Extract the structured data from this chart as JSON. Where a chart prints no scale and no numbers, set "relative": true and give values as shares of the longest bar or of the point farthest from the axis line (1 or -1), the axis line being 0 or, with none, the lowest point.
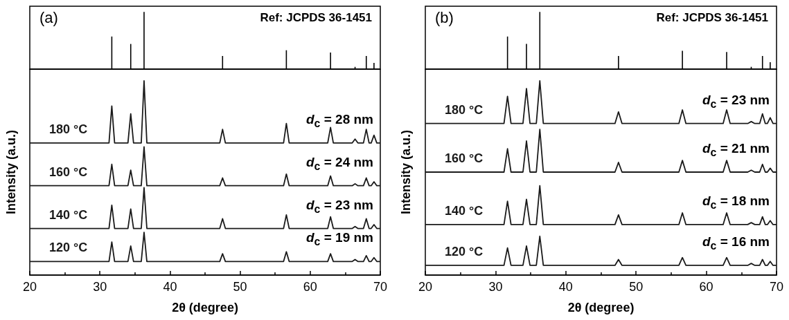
{
  "chart_data": [
    {
      "type": "bar",
      "relative": true,
      "color": "#000000",
      "x": [
        31.7,
        34.4,
        36.3,
        47.5,
        56.6,
        62.9,
        66.4,
        68.0,
        69.1
      ],
      "values": [
        0.57,
        0.44,
        1,
        0.23,
        0.33,
        0.29,
        0.04,
        0.23,
        0.11
      ],
      "xlim": [
        20,
        70
      ],
      "tick_labels": false,
      "annotations": [
        "(a)",
        "Ref: JCPDS 36-1451"
      ]
    },
    {
      "type": "line",
      "relative": true,
      "marker": "none",
      "xlabel": "2θ (degree)",
      "ylabel": "Intensity (a.u.)",
      "xlim": [
        20,
        70
      ],
      "xticks": [
        20,
        30,
        40,
        50,
        60,
        70
      ],
      "tick_labels": "x",
      "x": [
        20,
        31.3,
        31.7,
        32.1,
        34.0,
        34.4,
        34.8,
        35.9,
        36.3,
        36.7,
        47.1,
        47.5,
        47.9,
        56.2,
        56.6,
        57.0,
        62.5,
        62.9,
        63.3,
        66.0,
        66.4,
        66.8,
        67.6,
        68.0,
        68.4,
        68.7,
        69.1,
        69.5,
        70
      ],
      "series": [
        {
          "name": "180 °C",
          "color": "#1a1a1a",
          "values": [
            0.68,
            0.68,
            0.87,
            0.68,
            0.68,
            0.83,
            0.68,
            0.68,
            1,
            0.68,
            0.68,
            0.75,
            0.68,
            0.68,
            0.78,
            0.68,
            0.68,
            0.76,
            0.68,
            0.68,
            0.7,
            0.68,
            0.68,
            0.75,
            0.68,
            0.68,
            0.72,
            0.68,
            0.68
          ]
        },
        {
          "name": "160 °C",
          "color": "#1a1a1a",
          "values": [
            0.46,
            0.46,
            0.57,
            0.46,
            0.46,
            0.54,
            0.46,
            0.46,
            0.66,
            0.46,
            0.46,
            0.5,
            0.46,
            0.46,
            0.52,
            0.46,
            0.46,
            0.51,
            0.46,
            0.46,
            0.47,
            0.46,
            0.46,
            0.5,
            0.46,
            0.46,
            0.48,
            0.46,
            0.46
          ]
        },
        {
          "name": "140 °C",
          "color": "#1a1a1a",
          "values": [
            0.24,
            0.24,
            0.36,
            0.24,
            0.24,
            0.34,
            0.24,
            0.24,
            0.45,
            0.24,
            0.24,
            0.29,
            0.24,
            0.24,
            0.31,
            0.24,
            0.24,
            0.3,
            0.24,
            0.24,
            0.25,
            0.24,
            0.24,
            0.29,
            0.24,
            0.24,
            0.26,
            0.24,
            0.24
          ]
        },
        {
          "name": "120 °C",
          "color": "#1a1a1a",
          "values": [
            0.07,
            0.07,
            0.17,
            0.07,
            0.07,
            0.15,
            0.07,
            0.07,
            0.22,
            0.07,
            0.07,
            0.11,
            0.07,
            0.07,
            0.12,
            0.07,
            0.07,
            0.11,
            0.07,
            0.07,
            0.08,
            0.07,
            0.07,
            0.1,
            0.07,
            0.07,
            0.09,
            0.07,
            0.07
          ]
        }
      ],
      "annotations": [
        "d$_{c}$ = 28 nm",
        "d$_{c}$ = 24 nm",
        "d$_{c}$ = 23 nm",
        "d$_{c}$ = 19 nm"
      ]
    },
    {
      "type": "bar",
      "relative": true,
      "color": "#000000",
      "x": [
        31.7,
        34.4,
        36.3,
        47.5,
        56.6,
        62.9,
        66.4,
        68.0,
        69.1
      ],
      "values": [
        0.57,
        0.44,
        1,
        0.23,
        0.32,
        0.3,
        0.04,
        0.23,
        0.12
      ],
      "xlim": [
        20,
        70
      ],
      "tick_labels": false,
      "annotations": [
        "(b)",
        "Ref: JCPDS 36-1451"
      ]
    },
    {
      "type": "line",
      "relative": true,
      "marker": "none",
      "xlabel": "2θ (degree)",
      "ylabel": "Intensity (a.u.)",
      "xlim": [
        20,
        70
      ],
      "xticks": [
        20,
        30,
        40,
        50,
        60,
        70
      ],
      "tick_labels": "x",
      "x": [
        20,
        31.2,
        31.7,
        32.2,
        33.9,
        34.4,
        34.9,
        35.8,
        36.3,
        36.8,
        47.0,
        47.5,
        48.0,
        56.1,
        56.6,
        57.1,
        62.4,
        62.9,
        63.4,
        65.9,
        66.4,
        66.9,
        67.6,
        68.0,
        68.4,
        68.7,
        69.1,
        69.5,
        70
      ],
      "series": [
        {
          "name": "180 °C",
          "color": "#1a1a1a",
          "values": [
            0.78,
            0.78,
            0.92,
            0.78,
            0.78,
            0.96,
            0.78,
            0.78,
            1,
            0.78,
            0.78,
            0.84,
            0.78,
            0.78,
            0.85,
            0.78,
            0.78,
            0.85,
            0.78,
            0.78,
            0.79,
            0.78,
            0.78,
            0.83,
            0.78,
            0.78,
            0.81,
            0.78,
            0.78
          ]
        },
        {
          "name": "160 °C",
          "color": "#1a1a1a",
          "values": [
            0.53,
            0.53,
            0.65,
            0.53,
            0.53,
            0.69,
            0.53,
            0.53,
            0.75,
            0.53,
            0.53,
            0.58,
            0.53,
            0.53,
            0.59,
            0.53,
            0.53,
            0.59,
            0.53,
            0.53,
            0.54,
            0.53,
            0.53,
            0.57,
            0.53,
            0.53,
            0.55,
            0.53,
            0.53
          ]
        },
        {
          "name": "140 °C",
          "color": "#1a1a1a",
          "values": [
            0.26,
            0.26,
            0.38,
            0.26,
            0.26,
            0.39,
            0.26,
            0.26,
            0.46,
            0.26,
            0.26,
            0.31,
            0.26,
            0.26,
            0.32,
            0.26,
            0.26,
            0.32,
            0.26,
            0.26,
            0.27,
            0.26,
            0.26,
            0.3,
            0.26,
            0.26,
            0.28,
            0.26,
            0.26
          ]
        },
        {
          "name": "120 °C",
          "color": "#1a1a1a",
          "values": [
            0.05,
            0.05,
            0.14,
            0.05,
            0.05,
            0.15,
            0.05,
            0.05,
            0.2,
            0.05,
            0.05,
            0.08,
            0.05,
            0.05,
            0.09,
            0.05,
            0.05,
            0.09,
            0.05,
            0.05,
            0.06,
            0.05,
            0.05,
            0.08,
            0.05,
            0.05,
            0.07,
            0.05,
            0.05
          ]
        }
      ],
      "annotations": [
        "d$_{c}$ = 23 nm",
        "d$_{c}$ = 21 nm",
        "d$_{c}$ = 18 nm",
        "d$_{c}$ = 16 nm"
      ]
    }
  ]
}
